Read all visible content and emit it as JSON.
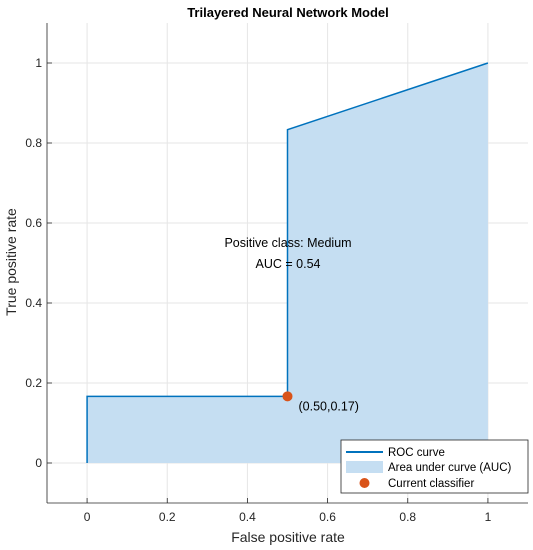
{
  "chart_data": {
    "type": "area",
    "title": "Trilayered Neural Network Model",
    "xlabel": "False positive rate",
    "ylabel": "True positive rate",
    "xlim": [
      -0.1,
      1.1
    ],
    "ylim": [
      -0.1,
      1.1
    ],
    "xticks": [
      0,
      0.2,
      0.4,
      0.6,
      0.8,
      1
    ],
    "yticks": [
      0,
      0.2,
      0.4,
      0.6,
      0.8,
      1
    ],
    "xtick_labels": [
      "0",
      "0.2",
      "0.4",
      "0.6",
      "0.8",
      "1"
    ],
    "ytick_labels": [
      "0",
      "0.2",
      "0.4",
      "0.6",
      "0.8",
      "1"
    ],
    "grid": true,
    "series": [
      {
        "name": "ROC curve",
        "x": [
          0,
          0,
          0.5,
          0.5,
          1
        ],
        "y": [
          0,
          0.1667,
          0.1667,
          0.8333,
          1
        ]
      }
    ],
    "auc_fill_label": "Area under curve (AUC)",
    "current_classifier": {
      "name": "Current classifier",
      "x": 0.5,
      "y": 0.1667,
      "label": "(0.50,0.17)"
    },
    "annotations": [
      "Positive class: Medium",
      "AUC = 0.54"
    ],
    "legend": {
      "position": "bottom-right",
      "entries": [
        "ROC curve",
        "Area under curve (AUC)",
        "Current classifier"
      ]
    },
    "colors": {
      "line": "#0072BD",
      "fill": "#C5DEF2",
      "marker": "#D95319",
      "grid": "#E6E6E6",
      "axis": "#262626"
    }
  }
}
